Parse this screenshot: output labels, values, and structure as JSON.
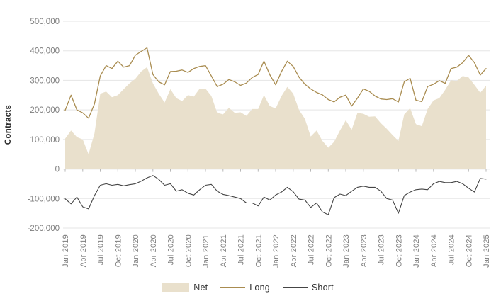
{
  "chart": {
    "y_axis_title": "Contracts",
    "legend": {
      "net": "Net",
      "long": "Long",
      "short": "Short"
    },
    "colors": {
      "net_fill": "#e9e0cc",
      "long_line": "#a98c50",
      "short_line": "#454545",
      "grid": "#e5e5e5",
      "axis": "#d4d4d4",
      "tick": "#b8b8b8",
      "label": "#7d7d7d",
      "title": "#2f2f2f"
    }
  },
  "chart_data": {
    "type": "area",
    "title": "",
    "xlabel": "",
    "ylabel": "Contracts",
    "ylim": [
      -200000,
      500000
    ],
    "grid": true,
    "legend_position": "bottom",
    "x_unit": "month",
    "x_range": [
      "Jan 2019",
      "Jan 2025"
    ],
    "x_tick_every_n_points": 3,
    "x_tick_labels": [
      "Jan 2019",
      "Apr 2019",
      "Jul 2019",
      "Oct 2019",
      "Jan 2020",
      "Apr 2020",
      "Jul 2020",
      "Oct 2020",
      "Jan 2021",
      "Apr 2021",
      "Jul 2021",
      "Oct 2021",
      "Jan 2022",
      "Apr 2022",
      "Jul 2022",
      "Oct 2022",
      "Jan 2023",
      "Apr 2023",
      "Jul 2023",
      "Oct 2023",
      "Jan 2024",
      "Apr 2024",
      "Jul 2024",
      "Oct 2024",
      "Jan 2025"
    ],
    "y_ticks": [
      {
        "value": 500000,
        "label": "500,000"
      },
      {
        "value": 400000,
        "label": "400,000"
      },
      {
        "value": 300000,
        "label": "300,000"
      },
      {
        "value": 200000,
        "label": "200,000"
      },
      {
        "value": 100000,
        "label": "100,000"
      },
      {
        "value": 0,
        "label": "0"
      },
      {
        "value": -100000,
        "label": "-100,000"
      },
      {
        "value": -200000,
        "label": "-200,000"
      }
    ],
    "series": [
      {
        "name": "Net",
        "type": "area",
        "color_key": "net_fill",
        "values": [
          103000,
          130000,
          108000,
          100000,
          50000,
          120000,
          255000,
          262000,
          243000,
          250000,
          270000,
          290000,
          305000,
          330000,
          345000,
          290000,
          255000,
          225000,
          270000,
          240000,
          230000,
          250000,
          245000,
          272000,
          272000,
          247000,
          190000,
          185000,
          207000,
          190000,
          192000,
          180000,
          203000,
          203000,
          250000,
          213000,
          205000,
          247000,
          278000,
          255000,
          200000,
          170000,
          110000,
          130000,
          95000,
          72000,
          92000,
          130000,
          165000,
          133000,
          190000,
          187000,
          177000,
          178000,
          155000,
          136000,
          115000,
          95000,
          185000,
          206000,
          152000,
          145000,
          203000,
          232000,
          240000,
          268000,
          300000,
          298000,
          315000,
          310000,
          285000,
          258000,
          282000
        ]
      },
      {
        "name": "Long",
        "type": "line",
        "color_key": "long_line",
        "width": 1.3,
        "values": [
          199000,
          250000,
          200000,
          190000,
          172000,
          220000,
          315000,
          350000,
          340000,
          365000,
          345000,
          350000,
          385000,
          398000,
          410000,
          320000,
          295000,
          285000,
          330000,
          331000,
          335000,
          327000,
          340000,
          347000,
          350000,
          315000,
          279000,
          287000,
          303000,
          295000,
          283000,
          291000,
          310000,
          320000,
          365000,
          319000,
          285000,
          330000,
          365000,
          347000,
          311000,
          287000,
          271000,
          259000,
          251000,
          235000,
          227000,
          243000,
          250000,
          213000,
          240000,
          271000,
          263000,
          247000,
          237000,
          235000,
          238000,
          227000,
          295000,
          307000,
          233000,
          228000,
          279000,
          287000,
          299000,
          290000,
          340000,
          345000,
          360000,
          385000,
          360000,
          318000,
          340000
        ]
      },
      {
        "name": "Short",
        "type": "line",
        "color_key": "short_line",
        "width": 1.1,
        "values": [
          -101000,
          -118000,
          -95000,
          -128000,
          -135000,
          -90000,
          -55000,
          -50000,
          -55000,
          -52000,
          -57000,
          -53000,
          -50000,
          -41000,
          -30000,
          -22000,
          -35000,
          -55000,
          -50000,
          -75000,
          -70000,
          -82000,
          -88000,
          -70000,
          -55000,
          -52000,
          -75000,
          -86000,
          -90000,
          -95000,
          -100000,
          -115000,
          -115000,
          -125000,
          -95000,
          -105000,
          -88000,
          -78000,
          -62000,
          -77000,
          -102000,
          -105000,
          -130000,
          -115000,
          -145000,
          -155000,
          -97000,
          -85000,
          -90000,
          -75000,
          -62000,
          -58000,
          -62000,
          -62000,
          -75000,
          -100000,
          -105000,
          -150000,
          -90000,
          -78000,
          -70000,
          -68000,
          -70000,
          -50000,
          -42000,
          -46000,
          -46000,
          -42000,
          -50000,
          -65000,
          -78000,
          -32000,
          -34000
        ]
      }
    ]
  }
}
